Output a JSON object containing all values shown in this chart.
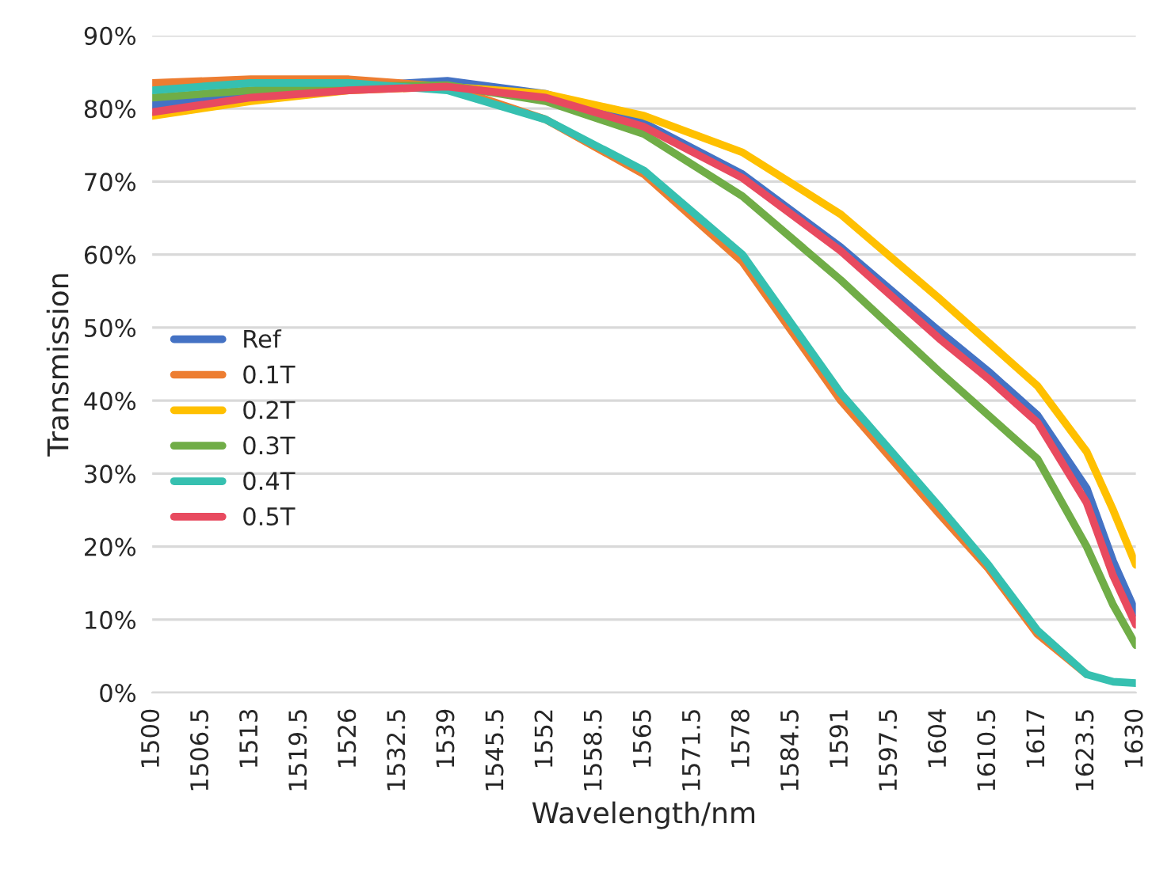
{
  "chart_data": {
    "type": "line",
    "xlabel": "Wavelength/nm",
    "ylabel": "Transmission",
    "x": [
      1500,
      1513,
      1526,
      1539,
      1552,
      1565,
      1578,
      1591,
      1604,
      1610.5,
      1617,
      1623.5,
      1627,
      1630
    ],
    "xlim": [
      1500,
      1630
    ],
    "xticks": [
      1500,
      1506.5,
      1513,
      1519.5,
      1526,
      1532.5,
      1539,
      1545.5,
      1552,
      1558.5,
      1565,
      1571.5,
      1578,
      1584.5,
      1591,
      1597.5,
      1604,
      1610.5,
      1617,
      1623.5,
      1630
    ],
    "ylim": [
      0,
      90
    ],
    "yticks": [
      {
        "value": 0,
        "label": "0%"
      },
      {
        "value": 10,
        "label": "10%"
      },
      {
        "value": 20,
        "label": "20%"
      },
      {
        "value": 30,
        "label": "30%"
      },
      {
        "value": 40,
        "label": "40%"
      },
      {
        "value": 50,
        "label": "50%"
      },
      {
        "value": 60,
        "label": "60%"
      },
      {
        "value": 70,
        "label": "70%"
      },
      {
        "value": 80,
        "label": "80%"
      },
      {
        "value": 90,
        "label": "90%"
      }
    ],
    "grid": "y",
    "legend": "left",
    "marker": "none",
    "line_style": "solid",
    "series": [
      {
        "name": "Ref",
        "color": "#4472c4",
        "values": [
          80.5,
          82,
          83,
          83.8,
          82,
          78,
          71,
          61,
          49.5,
          44,
          38,
          28,
          18,
          11
        ]
      },
      {
        "name": "0.1T",
        "color": "#ed7d31",
        "values": [
          83.5,
          84,
          84,
          83,
          78.5,
          71,
          59,
          40,
          24.5,
          17,
          8,
          2.5,
          null,
          null
        ]
      },
      {
        "name": "0.2T",
        "color": "#ffc000",
        "values": [
          79,
          81,
          82.5,
          83,
          82,
          79,
          74,
          65.5,
          54,
          48,
          42,
          33,
          25,
          17.5
        ]
      },
      {
        "name": "0.3T",
        "color": "#70ad47",
        "values": [
          81.5,
          82.5,
          83,
          83.2,
          81,
          76.5,
          68,
          56.5,
          44,
          38,
          32,
          20,
          12,
          6.5
        ]
      },
      {
        "name": "0.4T",
        "color": "#36c0b0",
        "values": [
          82.5,
          83.5,
          83.5,
          82.5,
          78.5,
          71.5,
          60,
          41,
          25.5,
          17.5,
          8.5,
          2.5,
          1.5,
          1.3
        ]
      },
      {
        "name": "0.5T",
        "color": "#e84a5f",
        "values": [
          79.5,
          81.5,
          82.5,
          83,
          81.5,
          77.5,
          70.5,
          60.5,
          48.5,
          43,
          37,
          26,
          16,
          9.3
        ]
      }
    ]
  }
}
